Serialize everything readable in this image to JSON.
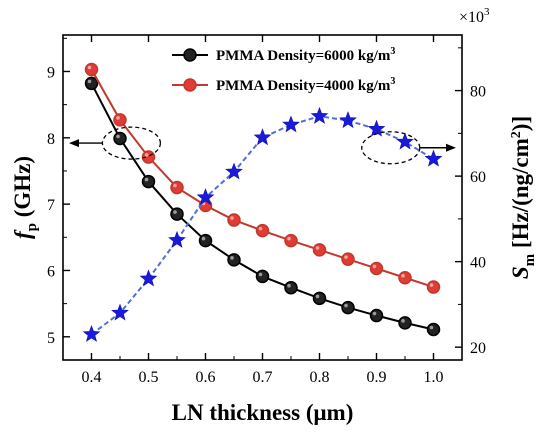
{
  "chart_data": {
    "type": "line",
    "xlabel": "LN thickness (μm)",
    "ylabel_left": {
      "main": "f",
      "sub": "p",
      "rest": " (GHz)"
    },
    "ylabel_right": {
      "main": "S",
      "sub": "m",
      "rest": " [Hz/(ng/cm",
      "sup": "2",
      "end": ")]"
    },
    "y2_multiplier": {
      "base": "×10",
      "exp": "3"
    },
    "xlim": [
      0.35,
      1.05
    ],
    "ylim_left": [
      4.65,
      9.55
    ],
    "ylim_right": [
      17,
      93
    ],
    "x_ticks": [
      "0.4",
      "0.5",
      "0.6",
      "0.7",
      "0.8",
      "0.9",
      "1.0"
    ],
    "y_left_ticks": [
      "5",
      "6",
      "7",
      "8",
      "9"
    ],
    "y_right_ticks": [
      "20",
      "40",
      "60",
      "80"
    ],
    "x": [
      0.4,
      0.45,
      0.5,
      0.55,
      0.6,
      0.65,
      0.7,
      0.75,
      0.8,
      0.85,
      0.9,
      0.95,
      1.0
    ],
    "series": [
      {
        "name": "PMMA Density=6000 kg/m3",
        "legend": {
          "text": "PMMA Density=6000 kg/m",
          "sup": "3"
        },
        "axis": "left",
        "color": "#000000",
        "fill": "#222222",
        "marker": "circle",
        "values": [
          8.82,
          7.99,
          7.34,
          6.85,
          6.45,
          6.16,
          5.91,
          5.74,
          5.58,
          5.44,
          5.32,
          5.21,
          5.11
        ]
      },
      {
        "name": "PMMA Density=4000 kg/m3",
        "legend": {
          "text": "PMMA Density=4000 kg/m",
          "sup": "3"
        },
        "axis": "left",
        "color": "#c0392b",
        "fill": "#e03b35",
        "marker": "circle",
        "values": [
          9.03,
          8.27,
          7.71,
          7.25,
          6.98,
          6.76,
          6.6,
          6.45,
          6.31,
          6.17,
          6.03,
          5.89,
          5.75
        ]
      },
      {
        "name": "",
        "axis": "right",
        "color": "#4f6fd8",
        "fill": "#1a1adb",
        "marker": "star",
        "line_style": "dashed",
        "values": [
          23,
          28,
          36,
          45,
          55,
          61,
          69,
          72,
          74,
          73,
          71,
          68,
          64
        ]
      }
    ],
    "annotations": [
      {
        "type": "ellipse-arrow",
        "target": "left-axis",
        "x": 0.47,
        "y_left": 7.92
      },
      {
        "type": "ellipse-arrow",
        "target": "right-axis",
        "x": 0.925,
        "y_left": 7.85
      }
    ],
    "legend_position": "top-right",
    "grid": false
  }
}
